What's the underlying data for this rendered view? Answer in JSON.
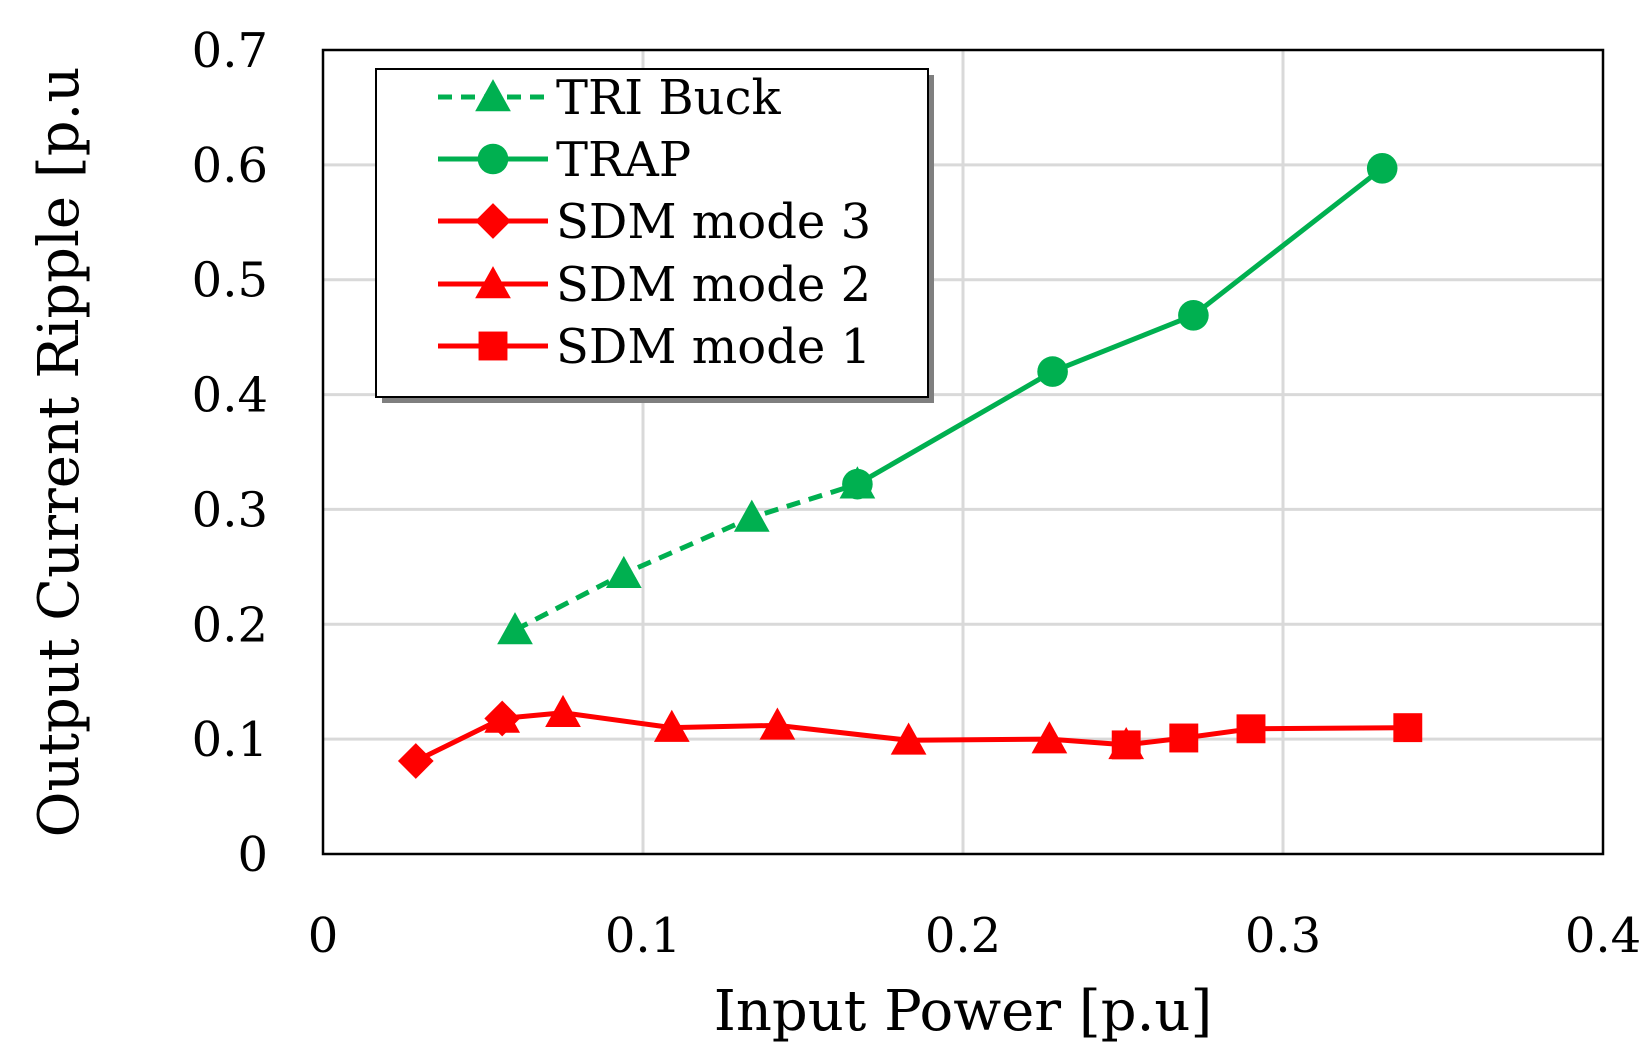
{
  "chart_data": {
    "type": "line",
    "title": "",
    "xlabel": "Input Power [p.u]",
    "ylabel": "Output Current Ripple [p.u",
    "xlim": [
      0,
      0.4
    ],
    "ylim": [
      0,
      0.7
    ],
    "xticks": [
      0,
      0.1,
      0.2,
      0.3,
      0.4
    ],
    "xtick_labels": [
      "0",
      "0.1",
      "0.2",
      "0.3",
      "0.4"
    ],
    "yticks": [
      0,
      0.1,
      0.2,
      0.3,
      0.4,
      0.5,
      0.6,
      0.7
    ],
    "ytick_labels": [
      "0",
      "0.1",
      "0.2",
      "0.3",
      "0.4",
      "0.5",
      "0.6",
      "0.7"
    ],
    "grid": true,
    "legend_position": "top-left",
    "series": [
      {
        "name": "TRI Buck",
        "color": "#00B050",
        "dash": "dashed",
        "marker": "triangle",
        "x": [
          0.06,
          0.094,
          0.134,
          0.167
        ],
        "y": [
          0.195,
          0.244,
          0.293,
          0.322
        ]
      },
      {
        "name": "TRAP",
        "color": "#00B050",
        "dash": "solid",
        "marker": "circle",
        "x": [
          0.167,
          0.228,
          0.272,
          0.331
        ],
        "y": [
          0.322,
          0.42,
          0.469,
          0.597
        ]
      },
      {
        "name": "SDM mode 3",
        "color": "#FF0000",
        "dash": "solid",
        "marker": "diamond",
        "x": [
          0.029,
          0.056
        ],
        "y": [
          0.081,
          0.118
        ]
      },
      {
        "name": "SDM mode 2",
        "color": "#FF0000",
        "dash": "solid",
        "marker": "triangle",
        "x": [
          0.056,
          0.075,
          0.109,
          0.142,
          0.183,
          0.227,
          0.251
        ],
        "y": [
          0.118,
          0.123,
          0.11,
          0.112,
          0.099,
          0.1,
          0.095
        ]
      },
      {
        "name": "SDM mode 1",
        "color": "#FF0000",
        "dash": "solid",
        "marker": "square",
        "x": [
          0.251,
          0.269,
          0.29,
          0.339
        ],
        "y": [
          0.095,
          0.101,
          0.109,
          0.11
        ]
      }
    ],
    "legend_order": [
      "TRI Buck",
      "TRAP",
      "SDM mode 3",
      "SDM mode 2",
      "SDM mode 1"
    ]
  }
}
